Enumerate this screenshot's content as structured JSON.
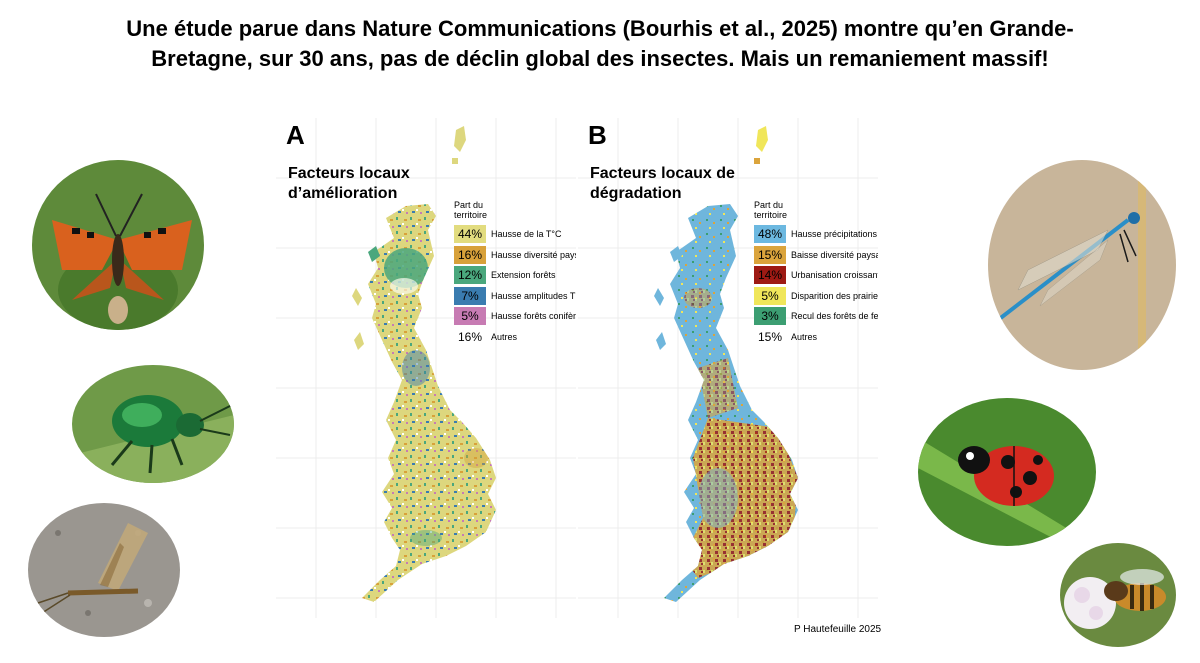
{
  "title": "Une étude parue dans Nature Communications (Bourhis et al., 2025) montre qu’en Grande-Bretagne, sur 30 ans, pas de déclin global des insectes. Mais un remaniement massif!",
  "panels": [
    {
      "letter": "A",
      "heading_line1": "Facteurs locaux",
      "heading_line2": "d’amélioration",
      "legend_heading_line1": "Part du",
      "legend_heading_line2": "territoire",
      "map_base_color": "#ddd77e",
      "items": [
        {
          "pct": "44%",
          "label": "Hausse de la T°C",
          "color": "#e2dc7f"
        },
        {
          "pct": "16%",
          "label": "Hausse diversité paysages",
          "color": "#d8a13a"
        },
        {
          "pct": "12%",
          "label": "Extension forêts",
          "color": "#4aa77d"
        },
        {
          "pct": "7%",
          "label": "Hausse amplitudes  T°C",
          "color": "#3a7cb0"
        },
        {
          "pct": "5%",
          "label": "Hausse forêts conifères",
          "color": "#c77bb3"
        },
        {
          "pct": "16%",
          "label": "Autres",
          "color": ""
        }
      ]
    },
    {
      "letter": "B",
      "heading_line1": "Facteurs locaux de",
      "heading_line2": "dégradation",
      "legend_heading_line1": "Part du",
      "legend_heading_line2": "territoire",
      "map_base_color": "#6fb6dc",
      "items": [
        {
          "pct": "48%",
          "label": "Hausse précipitations estivales",
          "color": "#6cb8e0"
        },
        {
          "pct": "15%",
          "label": "Baisse diversité paysages",
          "color": "#dba43c"
        },
        {
          "pct": "14%",
          "label": "Urbanisation croissante",
          "color": "#9e1a14"
        },
        {
          "pct": "5%",
          "label": "Disparition des prairies semi-naturelles",
          "color": "#f0e65a"
        },
        {
          "pct": "3%",
          "label": "Recul des forêts de feuillus",
          "color": "#3c9e72"
        },
        {
          "pct": "15%",
          "label": "Autres",
          "color": ""
        }
      ]
    }
  ],
  "insects": [
    {
      "name": "butterfly",
      "bg": "#5e8a3a"
    },
    {
      "name": "beetle",
      "bg": "#6f9a48"
    },
    {
      "name": "mayfly",
      "bg": "#9a9690"
    },
    {
      "name": "damselfly",
      "bg": "#c8b59a"
    },
    {
      "name": "ladybird",
      "bg": "#4a8a2e"
    },
    {
      "name": "bee",
      "bg": "#6a8a40"
    }
  ],
  "credit": "P Hautefeuille 2025"
}
